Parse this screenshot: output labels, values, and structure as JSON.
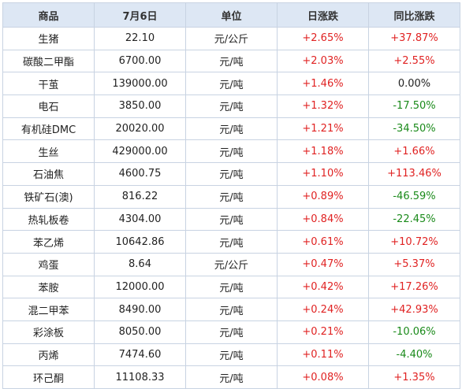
{
  "headers": [
    "商品",
    "7月6日",
    "单位",
    "日涨跌",
    "同比涨跌"
  ],
  "rows": [
    {
      "name": "生猪",
      "price": "22.10",
      "unit": "元/公斤",
      "daily": "+2.65%",
      "yoy": "+37.87%"
    },
    {
      "name": "碳酸二甲酯",
      "price": "6700.00",
      "unit": "元/吨",
      "daily": "+2.03%",
      "yoy": "+2.55%"
    },
    {
      "name": "干茧",
      "price": "139000.00",
      "unit": "元/吨",
      "daily": "+1.46%",
      "yoy": "0.00%"
    },
    {
      "name": "电石",
      "price": "3850.00",
      "unit": "元/吨",
      "daily": "+1.32%",
      "yoy": "-17.50%"
    },
    {
      "name": "有机硅DMC",
      "price": "20020.00",
      "unit": "元/吨",
      "daily": "+1.21%",
      "yoy": "-34.50%"
    },
    {
      "name": "生丝",
      "price": "429000.00",
      "unit": "元/吨",
      "daily": "+1.18%",
      "yoy": "+1.66%"
    },
    {
      "name": "石油焦",
      "price": "4600.75",
      "unit": "元/吨",
      "daily": "+1.10%",
      "yoy": "+113.46%"
    },
    {
      "name": "铁矿石(澳)",
      "price": "816.22",
      "unit": "元/吨",
      "daily": "+0.89%",
      "yoy": "-46.59%"
    },
    {
      "name": "热轧板卷",
      "price": "4304.00",
      "unit": "元/吨",
      "daily": "+0.84%",
      "yoy": "-22.45%"
    },
    {
      "name": "苯乙烯",
      "price": "10642.86",
      "unit": "元/吨",
      "daily": "+0.61%",
      "yoy": "+10.72%"
    },
    {
      "name": "鸡蛋",
      "price": "8.64",
      "unit": "元/公斤",
      "daily": "+0.47%",
      "yoy": "+5.37%"
    },
    {
      "name": "苯胺",
      "price": "12000.00",
      "unit": "元/吨",
      "daily": "+0.42%",
      "yoy": "+17.26%"
    },
    {
      "name": "混二甲苯",
      "price": "8490.00",
      "unit": "元/吨",
      "daily": "+0.24%",
      "yoy": "+42.93%"
    },
    {
      "name": "彩涂板",
      "price": "8050.00",
      "unit": "元/吨",
      "daily": "+0.21%",
      "yoy": "-10.06%"
    },
    {
      "name": "丙烯",
      "price": "7474.60",
      "unit": "元/吨",
      "daily": "+0.11%",
      "yoy": "-4.40%"
    },
    {
      "name": "环己酮",
      "price": "11108.33",
      "unit": "元/吨",
      "daily": "+0.08%",
      "yoy": "+1.35%"
    }
  ],
  "colors": {
    "up": "#e02222",
    "down": "#1a8a1a",
    "flat": "#222222",
    "header_bg": "#dde7f4",
    "border": "#c8d3e2"
  }
}
